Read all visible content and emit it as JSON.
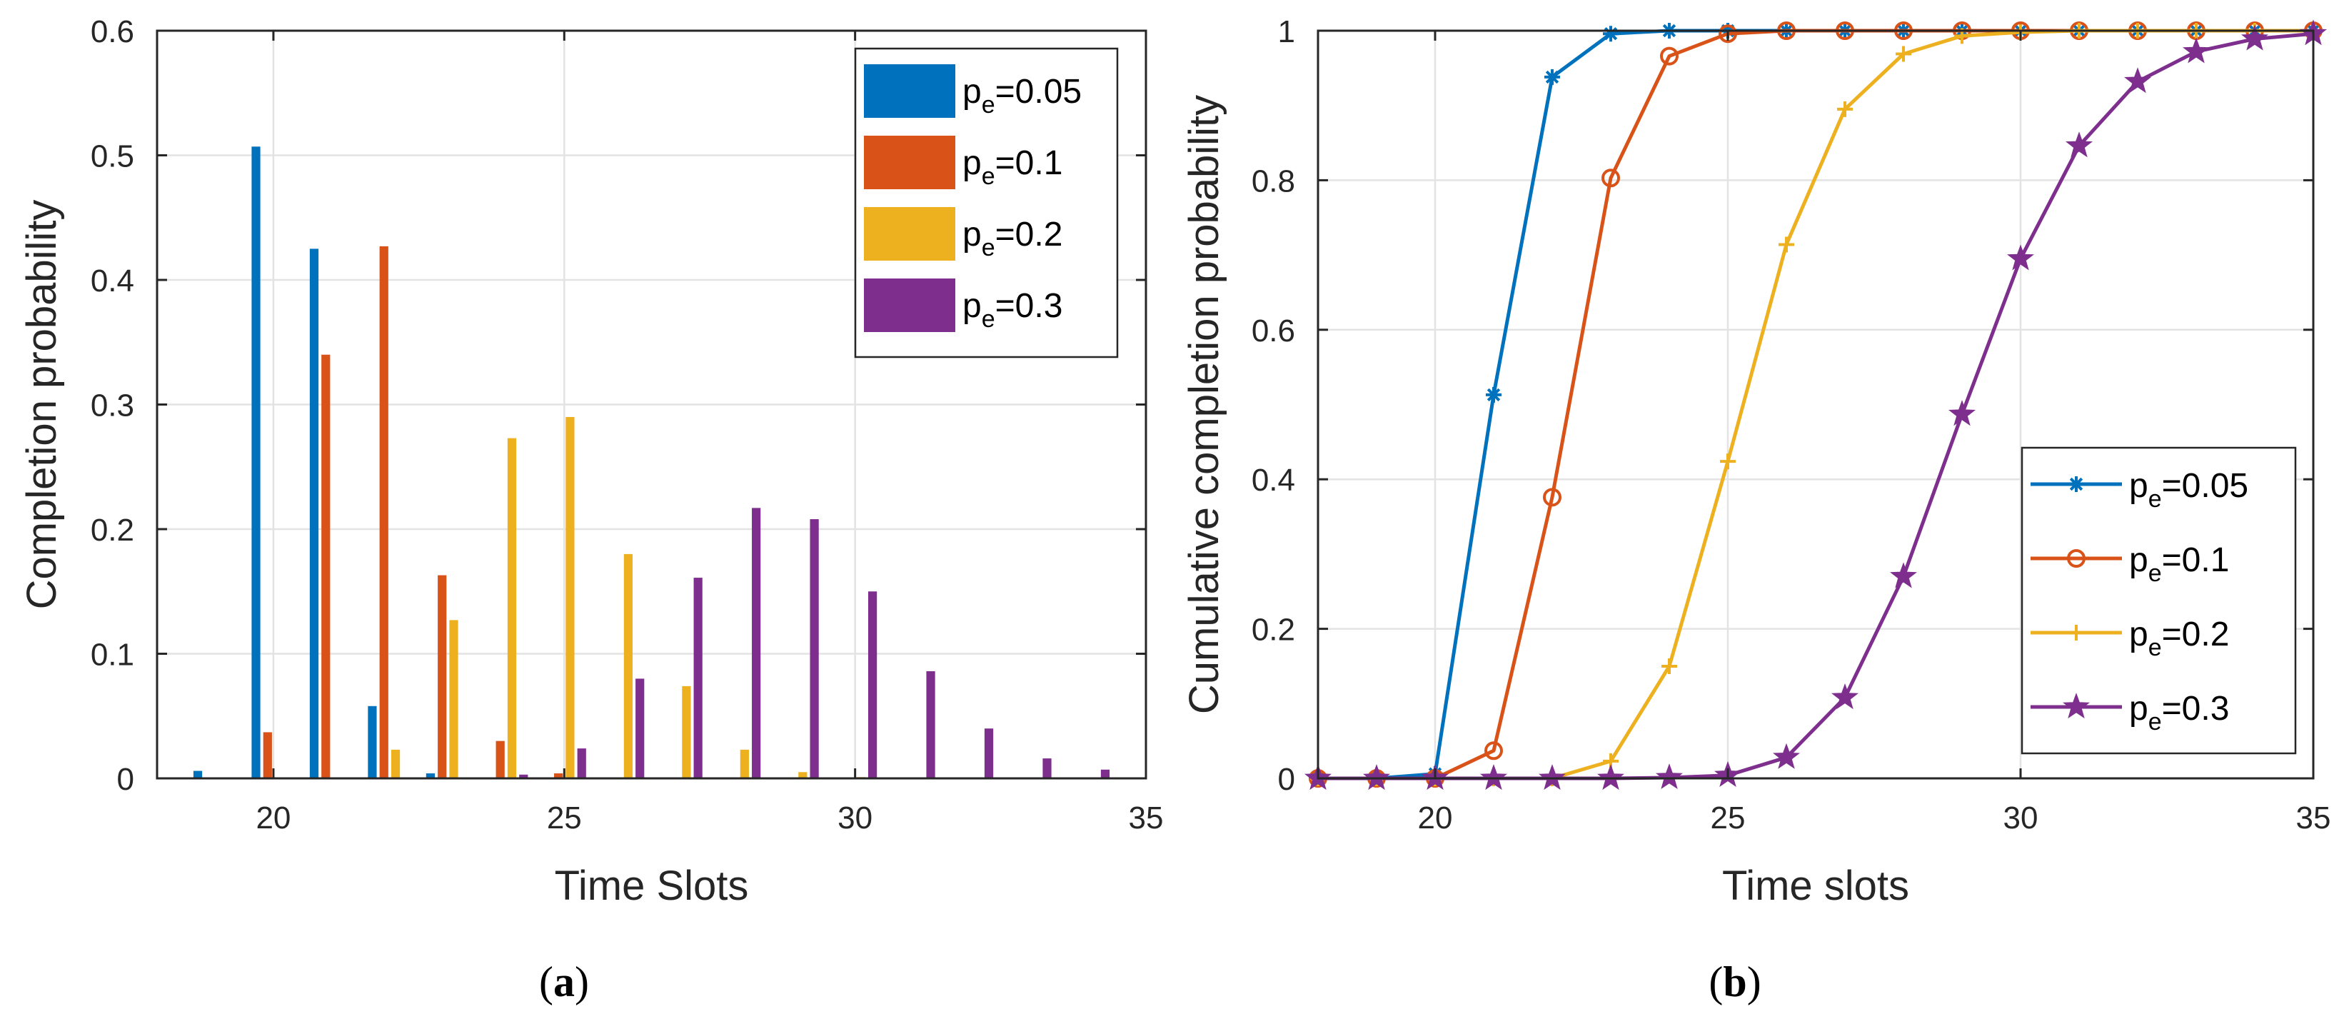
{
  "chart_data": [
    {
      "id": "a",
      "type": "bar",
      "caption": {
        "open": "(",
        "letter": "a",
        "close": ")"
      },
      "xlabel": "Time Slots",
      "ylabel": "Completion probability",
      "xlim": [
        18,
        35
      ],
      "ylim": [
        0,
        0.6
      ],
      "xticks": [
        20,
        25,
        30,
        35
      ],
      "yticks": [
        0,
        0.1,
        0.2,
        0.3,
        0.4,
        0.5,
        0.6
      ],
      "ytick_labels": [
        "0",
        "0.1",
        "0.2",
        "0.3",
        "0.4",
        "0.5",
        "0.6"
      ],
      "grid": true,
      "legend_position": "top-right",
      "x": [
        19,
        20,
        21,
        22,
        23,
        24,
        25,
        26,
        27,
        28,
        29,
        30,
        31,
        32,
        33,
        34
      ],
      "series": [
        {
          "name_base": "p",
          "name_sub": "e",
          "name_value": "=0.05",
          "color": "#0072BD",
          "values": [
            0.006,
            0.507,
            0.425,
            0.058,
            0.004,
            0,
            0,
            0,
            0,
            0,
            0,
            0,
            0,
            0,
            0,
            0
          ]
        },
        {
          "name_base": "p",
          "name_sub": "e",
          "name_value": "=0.1",
          "color": "#D95319",
          "values": [
            0,
            0.037,
            0.34,
            0.427,
            0.163,
            0.03,
            0.004,
            0,
            0,
            0,
            0,
            0,
            0,
            0,
            0,
            0
          ]
        },
        {
          "name_base": "p",
          "name_sub": "e",
          "name_value": "=0.2",
          "color": "#EDB120",
          "values": [
            0,
            0,
            0,
            0.023,
            0.127,
            0.273,
            0.29,
            0.18,
            0.074,
            0.023,
            0.005,
            0.001,
            0,
            0,
            0,
            0
          ]
        },
        {
          "name_base": "p",
          "name_sub": "e",
          "name_value": "=0.3",
          "color": "#7E2F8E",
          "values": [
            0,
            0,
            0,
            0,
            0,
            0.003,
            0.024,
            0.08,
            0.161,
            0.217,
            0.208,
            0.15,
            0.086,
            0.04,
            0.016,
            0.007
          ]
        }
      ]
    },
    {
      "id": "b",
      "type": "line",
      "caption": {
        "open": "(",
        "letter": "b",
        "close": ")"
      },
      "xlabel": "Time slots",
      "ylabel": "Cumulative completion probability",
      "xlim": [
        18,
        35
      ],
      "ylim": [
        0,
        1
      ],
      "xticks": [
        20,
        25,
        30,
        35
      ],
      "yticks": [
        0,
        0.2,
        0.4,
        0.6,
        0.8,
        1
      ],
      "ytick_labels": [
        "0",
        "0.2",
        "0.4",
        "0.6",
        "0.8",
        "1"
      ],
      "grid": true,
      "legend_position": "bottom-right",
      "x": [
        18,
        19,
        20,
        21,
        22,
        23,
        24,
        25,
        26,
        27,
        28,
        29,
        30,
        31,
        32,
        33,
        34,
        35
      ],
      "series": [
        {
          "name_base": "p",
          "name_sub": "e",
          "name_value": "=0.05",
          "color": "#0072BD",
          "marker": "asterisk",
          "values": [
            0,
            0,
            0.006,
            0.513,
            0.938,
            0.996,
            1,
            1,
            1,
            1,
            1,
            1,
            1,
            1,
            1,
            1,
            1,
            1
          ]
        },
        {
          "name_base": "p",
          "name_sub": "e",
          "name_value": "=0.1",
          "color": "#D95319",
          "marker": "circle",
          "values": [
            0,
            0,
            0,
            0.037,
            0.376,
            0.803,
            0.966,
            0.996,
            1,
            1,
            1,
            1,
            1,
            1,
            1,
            1,
            1,
            1
          ]
        },
        {
          "name_base": "p",
          "name_sub": "e",
          "name_value": "=0.2",
          "color": "#EDB120",
          "marker": "plus",
          "values": [
            0,
            0,
            0,
            0,
            0,
            0.023,
            0.15,
            0.424,
            0.714,
            0.895,
            0.969,
            0.993,
            0.998,
            1,
            1,
            1,
            1,
            1
          ]
        },
        {
          "name_base": "p",
          "name_sub": "e",
          "name_value": "=0.3",
          "color": "#7E2F8E",
          "marker": "star",
          "values": [
            0,
            0,
            0,
            0,
            0,
            0,
            0.001,
            0.004,
            0.028,
            0.108,
            0.27,
            0.487,
            0.695,
            0.846,
            0.932,
            0.972,
            0.989,
            0.996
          ]
        }
      ]
    }
  ]
}
